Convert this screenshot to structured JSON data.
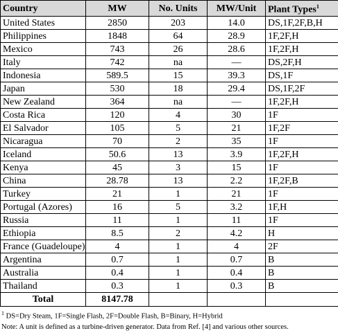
{
  "table": {
    "header": {
      "country": "Country",
      "mw": "MW",
      "units": "No. Units",
      "mw_per_unit": "MW/Unit",
      "plant_types": "Plant Types",
      "plant_types_mark": "1"
    },
    "rows": [
      [
        "United States",
        "2850",
        "203",
        "14.0",
        "DS,1F,2F,B,H"
      ],
      [
        "Philippines",
        "1848",
        "64",
        "28.9",
        "1F,2F,H"
      ],
      [
        "Mexico",
        "743",
        "26",
        "28.6",
        "1F,2F,H"
      ],
      [
        "Italy",
        "742",
        "na",
        "—",
        "DS,2F,H"
      ],
      [
        "Indonesia",
        "589.5",
        "15",
        "39.3",
        "DS,1F"
      ],
      [
        "Japan",
        "530",
        "18",
        "29.4",
        "DS,1F,2F"
      ],
      [
        "New Zealand",
        "364",
        "na",
        "—",
        "1F,2F,H"
      ],
      [
        "Costa Rica",
        "120",
        "4",
        "30",
        "1F"
      ],
      [
        "El Salvador",
        "105",
        "5",
        "21",
        "1F,2F"
      ],
      [
        "Nicaragua",
        "70",
        "2",
        "35",
        "1F"
      ],
      [
        "Iceland",
        "50.6",
        "13",
        "3.9",
        "1F,2F,H"
      ],
      [
        "Kenya",
        "45",
        "3",
        "15",
        "1F"
      ],
      [
        "China",
        "28.78",
        "13",
        "2.2",
        "1F,2F,B"
      ],
      [
        "Turkey",
        "21",
        "1",
        "21",
        "1F"
      ],
      [
        "Portugal (Azores)",
        "16",
        "5",
        "3.2",
        "1F,H"
      ],
      [
        "Russia",
        "11",
        "1",
        "11",
        "1F"
      ],
      [
        "Ethiopia",
        "8.5",
        "2",
        "4.2",
        "H"
      ],
      [
        "France (Guadeloupe)",
        "4",
        "1",
        "4",
        "2F"
      ],
      [
        "Argentina",
        "0.7",
        "1",
        "0.7",
        "B"
      ],
      [
        "Australia",
        "0.4",
        "1",
        "0.4",
        "B"
      ],
      [
        "Thailand",
        "0.3",
        "1",
        "0.3",
        "B"
      ]
    ],
    "total": {
      "label": "Total",
      "mw": "8147.78"
    }
  },
  "footnotes": {
    "mark": "1",
    "legend": "DS=Dry Steam, 1F=Single Flash, 2F=Double Flash, B=Binary, H=Hybrid",
    "note": "Note:  A unit is defined as a turbine-driven generator.  Data from Ref. [4] and various other sources."
  }
}
